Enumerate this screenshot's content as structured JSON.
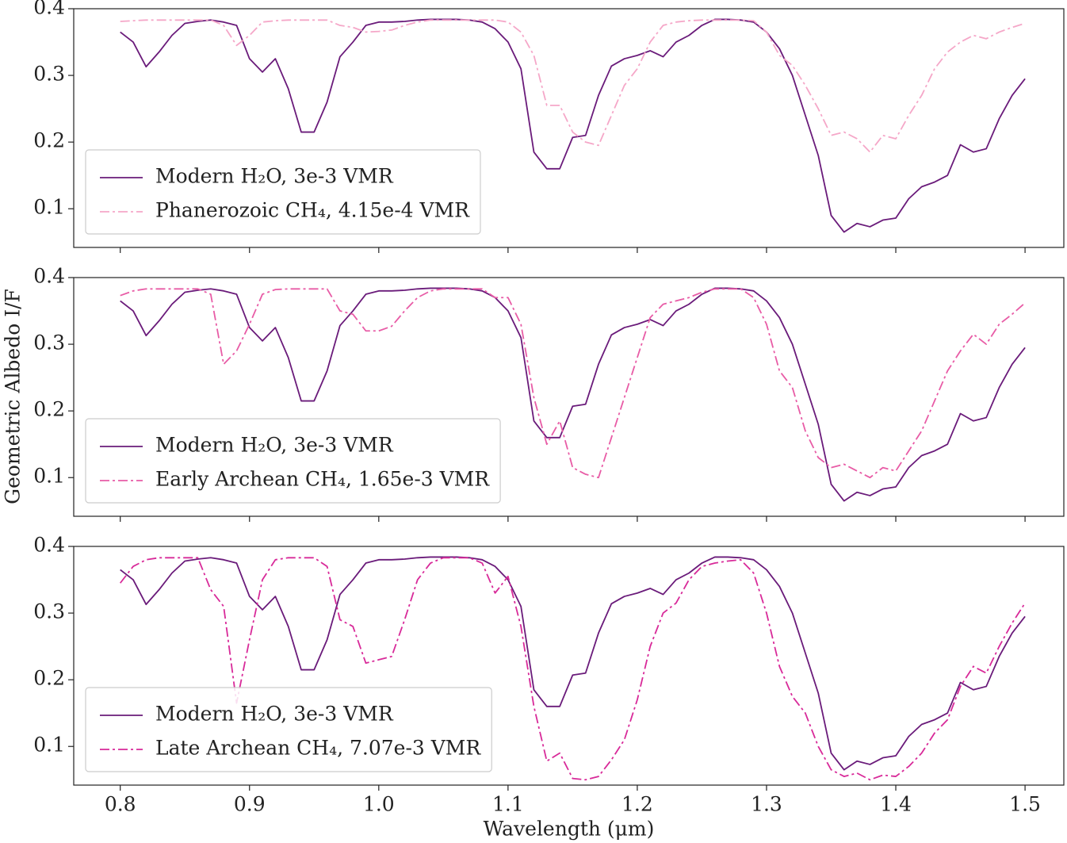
{
  "ylabel": "Geometric Albedo I/F",
  "chart_data": [
    {
      "type": "line",
      "legend": "lower left",
      "x": [
        0.8,
        0.81,
        0.82,
        0.83,
        0.84,
        0.85,
        0.86,
        0.87,
        0.88,
        0.89,
        0.9,
        0.91,
        0.92,
        0.93,
        0.94,
        0.95,
        0.96,
        0.97,
        0.98,
        0.99,
        1.0,
        1.01,
        1.02,
        1.03,
        1.04,
        1.05,
        1.06,
        1.07,
        1.08,
        1.09,
        1.1,
        1.11,
        1.12,
        1.13,
        1.14,
        1.15,
        1.16,
        1.17,
        1.18,
        1.19,
        1.2,
        1.21,
        1.22,
        1.23,
        1.24,
        1.25,
        1.26,
        1.27,
        1.28,
        1.29,
        1.3,
        1.31,
        1.32,
        1.33,
        1.34,
        1.35,
        1.36,
        1.37,
        1.38,
        1.39,
        1.4,
        1.41,
        1.42,
        1.43,
        1.44,
        1.45,
        1.46,
        1.47,
        1.48,
        1.49,
        1.5
      ],
      "xlim": [
        0.764,
        1.53
      ],
      "xticks": [
        0.8,
        0.9,
        1.0,
        1.1,
        1.2,
        1.3,
        1.4,
        1.5
      ],
      "ylim": [
        0.042,
        0.4
      ],
      "yticks": [
        0.1,
        0.2,
        0.3,
        0.4
      ],
      "series": [
        {
          "name": "Modern H₂O, 3e-3 VMR",
          "color": "#6a1b7a",
          "linestyle": "solid",
          "values": [
            0.365,
            0.35,
            0.313,
            0.335,
            0.36,
            0.378,
            0.381,
            0.383,
            0.38,
            0.375,
            0.325,
            0.305,
            0.325,
            0.28,
            0.215,
            0.215,
            0.26,
            0.328,
            0.35,
            0.375,
            0.38,
            0.38,
            0.381,
            0.383,
            0.384,
            0.384,
            0.384,
            0.383,
            0.38,
            0.37,
            0.35,
            0.31,
            0.185,
            0.16,
            0.16,
            0.207,
            0.21,
            0.27,
            0.314,
            0.325,
            0.33,
            0.337,
            0.328,
            0.35,
            0.36,
            0.375,
            0.384,
            0.384,
            0.383,
            0.38,
            0.365,
            0.34,
            0.3,
            0.24,
            0.18,
            0.09,
            0.065,
            0.078,
            0.073,
            0.083,
            0.086,
            0.115,
            0.133,
            0.14,
            0.15,
            0.196,
            0.185,
            0.19,
            0.235,
            0.27,
            0.295
          ]
        },
        {
          "name": "Phanerozoic CH₄, 4.15e-4 VMR",
          "color": "#f5a7c8",
          "linestyle": "dashdot",
          "values": [
            0.381,
            0.382,
            0.383,
            0.383,
            0.383,
            0.383,
            0.383,
            0.383,
            0.375,
            0.345,
            0.36,
            0.38,
            0.382,
            0.383,
            0.383,
            0.383,
            0.383,
            0.375,
            0.372,
            0.365,
            0.366,
            0.368,
            0.375,
            0.38,
            0.383,
            0.383,
            0.383,
            0.383,
            0.383,
            0.383,
            0.38,
            0.365,
            0.33,
            0.255,
            0.255,
            0.215,
            0.2,
            0.195,
            0.24,
            0.285,
            0.31,
            0.35,
            0.375,
            0.38,
            0.382,
            0.383,
            0.383,
            0.383,
            0.383,
            0.382,
            0.365,
            0.33,
            0.315,
            0.285,
            0.25,
            0.21,
            0.215,
            0.205,
            0.185,
            0.21,
            0.205,
            0.24,
            0.27,
            0.31,
            0.335,
            0.35,
            0.36,
            0.355,
            0.365,
            0.372,
            0.378
          ]
        }
      ]
    },
    {
      "type": "line",
      "legend": "lower left",
      "x": [
        0.8,
        0.81,
        0.82,
        0.83,
        0.84,
        0.85,
        0.86,
        0.87,
        0.88,
        0.89,
        0.9,
        0.91,
        0.92,
        0.93,
        0.94,
        0.95,
        0.96,
        0.97,
        0.98,
        0.99,
        1.0,
        1.01,
        1.02,
        1.03,
        1.04,
        1.05,
        1.06,
        1.07,
        1.08,
        1.09,
        1.1,
        1.11,
        1.12,
        1.13,
        1.14,
        1.15,
        1.16,
        1.17,
        1.18,
        1.19,
        1.2,
        1.21,
        1.22,
        1.23,
        1.24,
        1.25,
        1.26,
        1.27,
        1.28,
        1.29,
        1.3,
        1.31,
        1.32,
        1.33,
        1.34,
        1.35,
        1.36,
        1.37,
        1.38,
        1.39,
        1.4,
        1.41,
        1.42,
        1.43,
        1.44,
        1.45,
        1.46,
        1.47,
        1.48,
        1.49,
        1.5
      ],
      "xlim": [
        0.764,
        1.53
      ],
      "xticks": [
        0.8,
        0.9,
        1.0,
        1.1,
        1.2,
        1.3,
        1.4,
        1.5
      ],
      "ylim": [
        0.042,
        0.4
      ],
      "yticks": [
        0.1,
        0.2,
        0.3,
        0.4
      ],
      "series": [
        {
          "name": "Modern H₂O, 3e-3 VMR",
          "color": "#6a1b7a",
          "linestyle": "solid",
          "values": [
            0.365,
            0.35,
            0.313,
            0.335,
            0.36,
            0.378,
            0.381,
            0.383,
            0.38,
            0.375,
            0.325,
            0.305,
            0.325,
            0.28,
            0.215,
            0.215,
            0.26,
            0.328,
            0.35,
            0.375,
            0.38,
            0.38,
            0.381,
            0.383,
            0.384,
            0.384,
            0.384,
            0.383,
            0.38,
            0.37,
            0.35,
            0.31,
            0.185,
            0.16,
            0.16,
            0.207,
            0.21,
            0.27,
            0.314,
            0.325,
            0.33,
            0.337,
            0.328,
            0.35,
            0.36,
            0.375,
            0.384,
            0.384,
            0.383,
            0.38,
            0.365,
            0.34,
            0.3,
            0.24,
            0.18,
            0.09,
            0.065,
            0.078,
            0.073,
            0.083,
            0.086,
            0.115,
            0.133,
            0.14,
            0.15,
            0.196,
            0.185,
            0.19,
            0.235,
            0.27,
            0.295
          ]
        },
        {
          "name": "Early Archean CH₄, 1.65e-3 VMR",
          "color": "#e85ca6",
          "linestyle": "dashdot",
          "values": [
            0.373,
            0.38,
            0.383,
            0.383,
            0.383,
            0.383,
            0.383,
            0.375,
            0.27,
            0.29,
            0.33,
            0.375,
            0.382,
            0.383,
            0.383,
            0.383,
            0.383,
            0.35,
            0.345,
            0.32,
            0.32,
            0.327,
            0.35,
            0.37,
            0.38,
            0.383,
            0.383,
            0.383,
            0.383,
            0.37,
            0.37,
            0.33,
            0.22,
            0.15,
            0.185,
            0.115,
            0.105,
            0.1,
            0.16,
            0.22,
            0.28,
            0.34,
            0.36,
            0.365,
            0.37,
            0.378,
            0.383,
            0.383,
            0.383,
            0.37,
            0.33,
            0.26,
            0.235,
            0.17,
            0.13,
            0.115,
            0.12,
            0.11,
            0.1,
            0.115,
            0.11,
            0.14,
            0.17,
            0.215,
            0.26,
            0.29,
            0.315,
            0.3,
            0.33,
            0.345,
            0.362
          ]
        }
      ]
    },
    {
      "type": "line",
      "legend": "lower left",
      "x": [
        0.8,
        0.81,
        0.82,
        0.83,
        0.84,
        0.85,
        0.86,
        0.87,
        0.88,
        0.89,
        0.9,
        0.91,
        0.92,
        0.93,
        0.94,
        0.95,
        0.96,
        0.97,
        0.98,
        0.99,
        1.0,
        1.01,
        1.02,
        1.03,
        1.04,
        1.05,
        1.06,
        1.07,
        1.08,
        1.09,
        1.1,
        1.11,
        1.12,
        1.13,
        1.14,
        1.15,
        1.16,
        1.17,
        1.18,
        1.19,
        1.2,
        1.21,
        1.22,
        1.23,
        1.24,
        1.25,
        1.26,
        1.27,
        1.28,
        1.29,
        1.3,
        1.31,
        1.32,
        1.33,
        1.34,
        1.35,
        1.36,
        1.37,
        1.38,
        1.39,
        1.4,
        1.41,
        1.42,
        1.43,
        1.44,
        1.45,
        1.46,
        1.47,
        1.48,
        1.49,
        1.5
      ],
      "xlim": [
        0.764,
        1.53
      ],
      "xticks": [
        0.8,
        0.9,
        {
          "value": 1.0,
          "label": "1.0"
        },
        1.1,
        1.2,
        1.3,
        1.4,
        {
          "value": 1.5,
          "label": "1.5"
        }
      ],
      "xlabel": "Wavelength (μm)",
      "ylim": [
        0.042,
        0.4
      ],
      "yticks": [
        0.1,
        0.2,
        0.3,
        0.4
      ],
      "series": [
        {
          "name": "Modern H₂O, 3e-3 VMR",
          "color": "#6a1b7a",
          "linestyle": "solid",
          "values": [
            0.365,
            0.35,
            0.313,
            0.335,
            0.36,
            0.378,
            0.381,
            0.383,
            0.38,
            0.375,
            0.325,
            0.305,
            0.325,
            0.28,
            0.215,
            0.215,
            0.26,
            0.328,
            0.35,
            0.375,
            0.38,
            0.38,
            0.381,
            0.383,
            0.384,
            0.384,
            0.384,
            0.383,
            0.38,
            0.37,
            0.35,
            0.31,
            0.185,
            0.16,
            0.16,
            0.207,
            0.21,
            0.27,
            0.314,
            0.325,
            0.33,
            0.337,
            0.328,
            0.35,
            0.36,
            0.375,
            0.384,
            0.384,
            0.383,
            0.38,
            0.365,
            0.34,
            0.3,
            0.24,
            0.18,
            0.09,
            0.065,
            0.078,
            0.073,
            0.083,
            0.086,
            0.115,
            0.133,
            0.14,
            0.15,
            0.196,
            0.185,
            0.19,
            0.235,
            0.27,
            0.295
          ]
        },
        {
          "name": "Late Archean CH₄, 7.07e-3 VMR",
          "color": "#d82a99",
          "linestyle": "dashdot",
          "values": [
            0.345,
            0.37,
            0.38,
            0.383,
            0.383,
            0.383,
            0.383,
            0.335,
            0.31,
            0.165,
            0.26,
            0.35,
            0.38,
            0.383,
            0.383,
            0.383,
            0.37,
            0.29,
            0.28,
            0.225,
            0.23,
            0.235,
            0.29,
            0.35,
            0.375,
            0.383,
            0.383,
            0.383,
            0.375,
            0.33,
            0.355,
            0.28,
            0.16,
            0.078,
            0.09,
            0.052,
            0.05,
            0.055,
            0.08,
            0.11,
            0.17,
            0.25,
            0.3,
            0.315,
            0.35,
            0.37,
            0.375,
            0.378,
            0.38,
            0.36,
            0.3,
            0.22,
            0.175,
            0.15,
            0.1,
            0.065,
            0.055,
            0.06,
            0.05,
            0.057,
            0.055,
            0.07,
            0.09,
            0.12,
            0.14,
            0.19,
            0.22,
            0.21,
            0.25,
            0.285,
            0.315
          ]
        }
      ]
    }
  ]
}
